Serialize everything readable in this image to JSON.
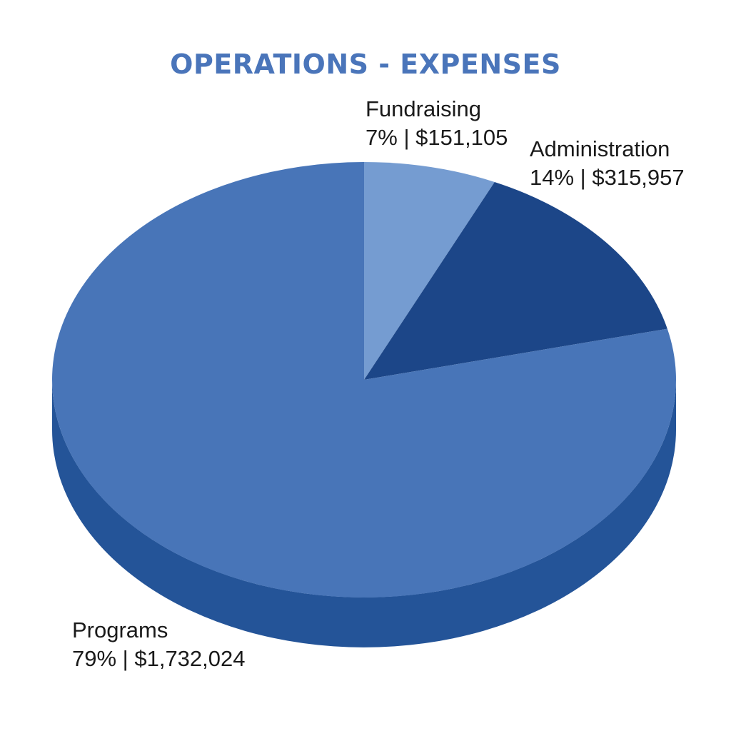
{
  "chart_data": {
    "type": "pie",
    "title": "OPERATIONS - EXPENSES",
    "slices": [
      {
        "name": "Fundraising",
        "percent": 7,
        "value": 151105,
        "percent_label": "7%",
        "value_label": "$151,105",
        "color": "#759cd1"
      },
      {
        "name": "Administration",
        "percent": 14,
        "value": 315957,
        "percent_label": "14%",
        "value_label": "$315,957",
        "color": "#1c4688"
      },
      {
        "name": "Programs",
        "percent": 79,
        "value": 1732024,
        "percent_label": "79%",
        "value_label": "$1,732,024",
        "color": "#4875b8"
      }
    ],
    "side_color": "#245498"
  }
}
